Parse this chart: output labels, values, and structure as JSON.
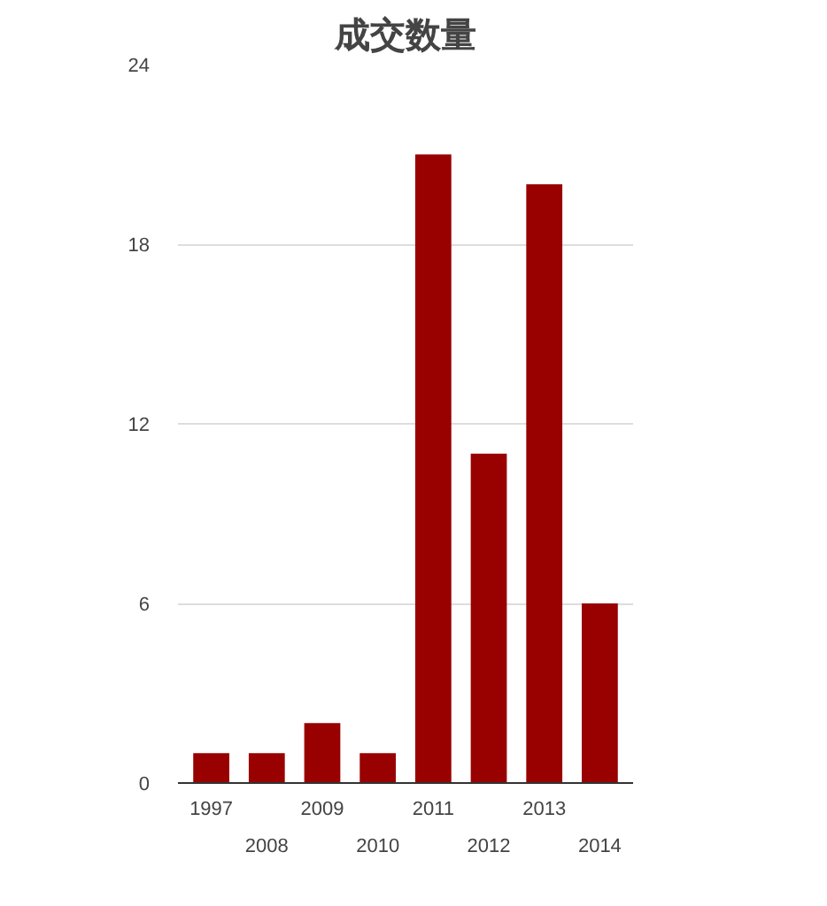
{
  "chart_data": {
    "type": "bar",
    "title": "成交数量",
    "categories": [
      "1997",
      "2008",
      "2009",
      "2010",
      "2011",
      "2012",
      "2013",
      "2014"
    ],
    "values": [
      1,
      1,
      2,
      1,
      21,
      11,
      20,
      6
    ],
    "color": "#990000",
    "ylim": [
      0,
      24
    ],
    "yticks": [
      0,
      6,
      12,
      18,
      24
    ],
    "grid": "y"
  }
}
